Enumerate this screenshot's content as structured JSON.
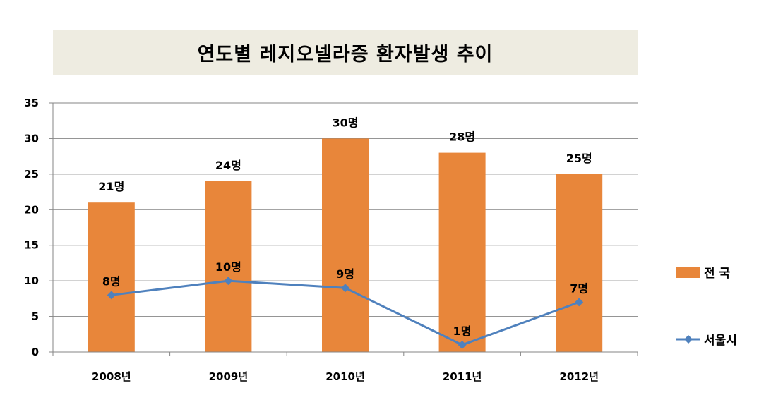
{
  "chart_data": {
    "type": "bar+line",
    "title": "연도별 레지오넬라증 환자발생 추이",
    "categories": [
      "2008년",
      "2009년",
      "2010년",
      "2011년",
      "2012년"
    ],
    "ylim": [
      0,
      35
    ],
    "yticks": [
      "0",
      "5",
      "10",
      "15",
      "20",
      "25",
      "30",
      "35"
    ],
    "grid": true,
    "legend_position": "right",
    "series": [
      {
        "name": "전  국",
        "type": "bar",
        "color": "#e8863a",
        "values": [
          21,
          24,
          30,
          28,
          25
        ],
        "labels": [
          "21명",
          "24명",
          "30명",
          "28명",
          "25명"
        ]
      },
      {
        "name": "서울시",
        "type": "line",
        "marker": "diamond",
        "color": "#4f81bd",
        "values": [
          8,
          10,
          9,
          1,
          7
        ],
        "labels": [
          "8명",
          "10명",
          "9명",
          "1명",
          "7명"
        ]
      }
    ]
  }
}
